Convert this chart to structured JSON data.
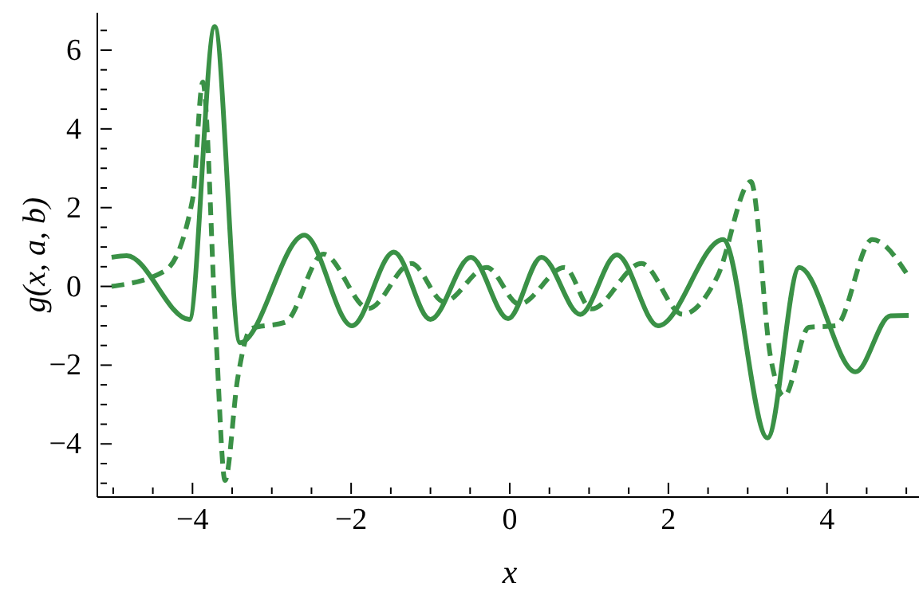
{
  "chart_data": {
    "type": "line",
    "xlabel": "x",
    "ylabel": "g(x, a, b)",
    "xlim": [
      -5.2,
      5.2
    ],
    "ylim": [
      -5.35,
      6.95
    ],
    "xticks": [
      {
        "value": -5,
        "label": null
      },
      {
        "value": -4.5,
        "label": null
      },
      -4,
      {
        "value": -3.5,
        "label": null
      },
      {
        "value": -3,
        "label": null
      },
      {
        "value": -2.5,
        "label": null
      },
      -2,
      {
        "value": -1.5,
        "label": null
      },
      {
        "value": -1,
        "label": null
      },
      {
        "value": -0.5,
        "label": null
      },
      0,
      {
        "value": 0.5,
        "label": null
      },
      {
        "value": 1,
        "label": null
      },
      {
        "value": 1.5,
        "label": null
      },
      2,
      {
        "value": 2.5,
        "label": null
      },
      {
        "value": 3,
        "label": null
      },
      {
        "value": 3.5,
        "label": null
      },
      4,
      {
        "value": 4.5,
        "label": null
      },
      {
        "value": 5,
        "label": null
      }
    ],
    "yticks": [
      {
        "value": -5,
        "label": null
      },
      {
        "value": -4.5,
        "label": null
      },
      -4,
      {
        "value": -3.5,
        "label": null
      },
      {
        "value": -3,
        "label": null
      },
      {
        "value": -2.5,
        "label": null
      },
      -2,
      {
        "value": -1.5,
        "label": null
      },
      {
        "value": -1,
        "label": null
      },
      {
        "value": -0.5,
        "label": null
      },
      0,
      {
        "value": 0.5,
        "label": null
      },
      {
        "value": 1,
        "label": null
      },
      {
        "value": 1.5,
        "label": null
      },
      2,
      {
        "value": 2.5,
        "label": null
      },
      {
        "value": 3,
        "label": null
      },
      {
        "value": 3.5,
        "label": null
      },
      4,
      {
        "value": 4.5,
        "label": null
      },
      {
        "value": 5,
        "label": null
      },
      {
        "value": 5.5,
        "label": null
      },
      6,
      {
        "value": 6.5,
        "label": null
      }
    ],
    "grid": false,
    "marker": "none",
    "series": [
      {
        "color": "#3a9146",
        "line_style": "solid",
        "x": [
          -5.02,
          -4.83,
          -4.04,
          -3.72,
          -3.4,
          -2.59,
          -1.99,
          -1.46,
          -1.0,
          -0.49,
          -0.02,
          0.4,
          0.89,
          1.35,
          1.87,
          2.69,
          3.25,
          3.65,
          4.36,
          4.8,
          5.03
        ],
        "values": [
          0.74,
          0.78,
          -0.84,
          6.6,
          -1.43,
          1.3,
          -1.0,
          0.87,
          -0.84,
          0.74,
          -0.82,
          0.74,
          -0.71,
          0.8,
          -1.0,
          1.19,
          -3.85,
          0.48,
          -2.17,
          -0.75,
          -0.74
        ]
      },
      {
        "color": "#3a9146",
        "line_style": "dashed",
        "x": [
          -5.02,
          -4.35,
          -4.0,
          -3.87,
          -3.7,
          -3.59,
          -3.43,
          -3.26,
          -2.83,
          -2.35,
          -1.78,
          -1.24,
          -0.83,
          -0.29,
          0.12,
          0.69,
          1.03,
          1.66,
          2.18,
          2.62,
          3.04,
          3.29,
          3.46,
          3.77,
          4.11,
          4.57,
          5.02
        ],
        "values": [
          0,
          0.39,
          2.2,
          5.19,
          -1.43,
          -4.93,
          -2.33,
          -1.07,
          -0.91,
          0.82,
          -0.56,
          0.58,
          -0.39,
          0.48,
          -0.45,
          0.48,
          -0.57,
          0.58,
          -0.71,
          0.26,
          2.66,
          -1.82,
          -2.79,
          -1.04,
          -1.0,
          1.19,
          0.28
        ]
      }
    ]
  }
}
